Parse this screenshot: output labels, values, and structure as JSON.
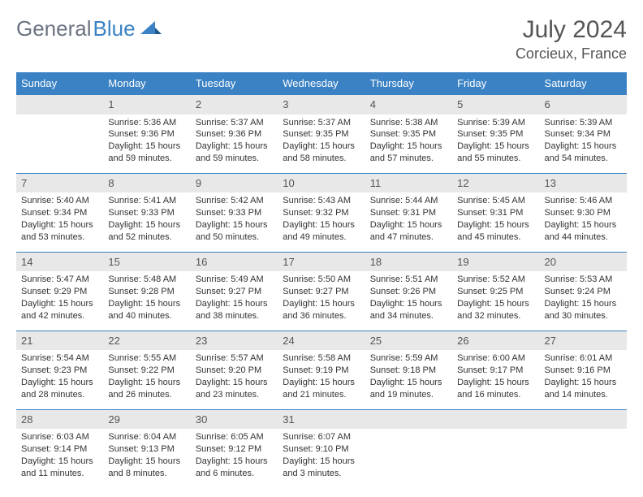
{
  "logo": {
    "part1": "General",
    "part2": "Blue"
  },
  "title": "July 2024",
  "location": "Corcieux, France",
  "colors": {
    "header_bg": "#3b82c4",
    "header_text": "#ffffff",
    "daynum_bg": "#e8e8e8",
    "border": "#3b82c4",
    "text": "#333333",
    "title_text": "#555555",
    "logo_gray": "#6b7280"
  },
  "dayHeaders": [
    "Sunday",
    "Monday",
    "Tuesday",
    "Wednesday",
    "Thursday",
    "Friday",
    "Saturday"
  ],
  "weeks": [
    [
      null,
      {
        "n": "1",
        "sr": "5:36 AM",
        "ss": "9:36 PM",
        "dl": "15 hours and 59 minutes."
      },
      {
        "n": "2",
        "sr": "5:37 AM",
        "ss": "9:36 PM",
        "dl": "15 hours and 59 minutes."
      },
      {
        "n": "3",
        "sr": "5:37 AM",
        "ss": "9:35 PM",
        "dl": "15 hours and 58 minutes."
      },
      {
        "n": "4",
        "sr": "5:38 AM",
        "ss": "9:35 PM",
        "dl": "15 hours and 57 minutes."
      },
      {
        "n": "5",
        "sr": "5:39 AM",
        "ss": "9:35 PM",
        "dl": "15 hours and 55 minutes."
      },
      {
        "n": "6",
        "sr": "5:39 AM",
        "ss": "9:34 PM",
        "dl": "15 hours and 54 minutes."
      }
    ],
    [
      {
        "n": "7",
        "sr": "5:40 AM",
        "ss": "9:34 PM",
        "dl": "15 hours and 53 minutes."
      },
      {
        "n": "8",
        "sr": "5:41 AM",
        "ss": "9:33 PM",
        "dl": "15 hours and 52 minutes."
      },
      {
        "n": "9",
        "sr": "5:42 AM",
        "ss": "9:33 PM",
        "dl": "15 hours and 50 minutes."
      },
      {
        "n": "10",
        "sr": "5:43 AM",
        "ss": "9:32 PM",
        "dl": "15 hours and 49 minutes."
      },
      {
        "n": "11",
        "sr": "5:44 AM",
        "ss": "9:31 PM",
        "dl": "15 hours and 47 minutes."
      },
      {
        "n": "12",
        "sr": "5:45 AM",
        "ss": "9:31 PM",
        "dl": "15 hours and 45 minutes."
      },
      {
        "n": "13",
        "sr": "5:46 AM",
        "ss": "9:30 PM",
        "dl": "15 hours and 44 minutes."
      }
    ],
    [
      {
        "n": "14",
        "sr": "5:47 AM",
        "ss": "9:29 PM",
        "dl": "15 hours and 42 minutes."
      },
      {
        "n": "15",
        "sr": "5:48 AM",
        "ss": "9:28 PM",
        "dl": "15 hours and 40 minutes."
      },
      {
        "n": "16",
        "sr": "5:49 AM",
        "ss": "9:27 PM",
        "dl": "15 hours and 38 minutes."
      },
      {
        "n": "17",
        "sr": "5:50 AM",
        "ss": "9:27 PM",
        "dl": "15 hours and 36 minutes."
      },
      {
        "n": "18",
        "sr": "5:51 AM",
        "ss": "9:26 PM",
        "dl": "15 hours and 34 minutes."
      },
      {
        "n": "19",
        "sr": "5:52 AM",
        "ss": "9:25 PM",
        "dl": "15 hours and 32 minutes."
      },
      {
        "n": "20",
        "sr": "5:53 AM",
        "ss": "9:24 PM",
        "dl": "15 hours and 30 minutes."
      }
    ],
    [
      {
        "n": "21",
        "sr": "5:54 AM",
        "ss": "9:23 PM",
        "dl": "15 hours and 28 minutes."
      },
      {
        "n": "22",
        "sr": "5:55 AM",
        "ss": "9:22 PM",
        "dl": "15 hours and 26 minutes."
      },
      {
        "n": "23",
        "sr": "5:57 AM",
        "ss": "9:20 PM",
        "dl": "15 hours and 23 minutes."
      },
      {
        "n": "24",
        "sr": "5:58 AM",
        "ss": "9:19 PM",
        "dl": "15 hours and 21 minutes."
      },
      {
        "n": "25",
        "sr": "5:59 AM",
        "ss": "9:18 PM",
        "dl": "15 hours and 19 minutes."
      },
      {
        "n": "26",
        "sr": "6:00 AM",
        "ss": "9:17 PM",
        "dl": "15 hours and 16 minutes."
      },
      {
        "n": "27",
        "sr": "6:01 AM",
        "ss": "9:16 PM",
        "dl": "15 hours and 14 minutes."
      }
    ],
    [
      {
        "n": "28",
        "sr": "6:03 AM",
        "ss": "9:14 PM",
        "dl": "15 hours and 11 minutes."
      },
      {
        "n": "29",
        "sr": "6:04 AM",
        "ss": "9:13 PM",
        "dl": "15 hours and 8 minutes."
      },
      {
        "n": "30",
        "sr": "6:05 AM",
        "ss": "9:12 PM",
        "dl": "15 hours and 6 minutes."
      },
      {
        "n": "31",
        "sr": "6:07 AM",
        "ss": "9:10 PM",
        "dl": "15 hours and 3 minutes."
      },
      null,
      null,
      null
    ]
  ],
  "labels": {
    "sunrise": "Sunrise:",
    "sunset": "Sunset:",
    "daylight": "Daylight:"
  }
}
